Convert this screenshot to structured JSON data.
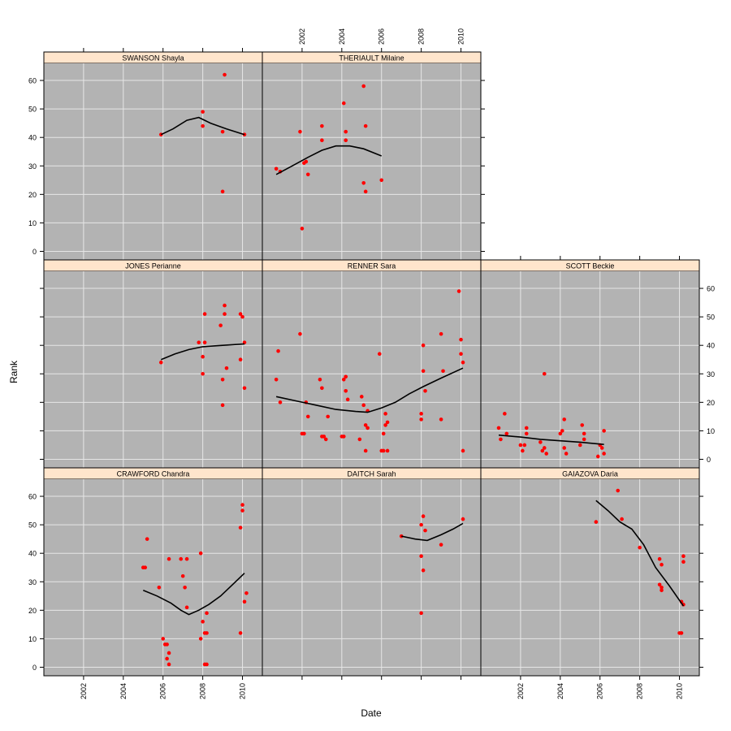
{
  "chart_data": {
    "type": "scatter",
    "xlabel": "Date",
    "ylabel": "Rank",
    "xlim": [
      2000.0,
      2011.0
    ],
    "ylim": [
      -3,
      66
    ],
    "x_ticks": [
      2002,
      2004,
      2006,
      2008,
      2010
    ],
    "y_ticks": [
      0,
      10,
      20,
      30,
      40,
      50,
      60
    ],
    "colors": {
      "panel_bg": "#b3b3b3",
      "grid": "#e6e6e6",
      "strip": "#ffe5cc",
      "points": "#ff0000",
      "smooth_line": "#000000"
    },
    "panels": [
      {
        "name": "SWANSON Shayla",
        "row": 0,
        "col": 0,
        "points": [
          [
            2005.9,
            41
          ],
          [
            2008.0,
            49
          ],
          [
            2008.0,
            44
          ],
          [
            2009.1,
            62
          ],
          [
            2009.0,
            42
          ],
          [
            2009.0,
            21
          ],
          [
            2010.1,
            41
          ]
        ],
        "smooth": [
          [
            2005.9,
            41
          ],
          [
            2006.5,
            43
          ],
          [
            2007.2,
            46
          ],
          [
            2007.8,
            47
          ],
          [
            2008.4,
            45
          ],
          [
            2009.2,
            43
          ],
          [
            2010.1,
            41
          ]
        ]
      },
      {
        "name": "THERIAULT Milaine",
        "row": 0,
        "col": 1,
        "points": [
          [
            2000.7,
            29
          ],
          [
            2000.9,
            28
          ],
          [
            2001.9,
            42
          ],
          [
            2002.0,
            8
          ],
          [
            2002.1,
            31
          ],
          [
            2002.2,
            31.5
          ],
          [
            2002.3,
            27
          ],
          [
            2003.0,
            44
          ],
          [
            2003.0,
            39
          ],
          [
            2004.1,
            52
          ],
          [
            2004.2,
            42
          ],
          [
            2004.2,
            39
          ],
          [
            2005.1,
            58
          ],
          [
            2005.2,
            44
          ],
          [
            2005.1,
            24
          ],
          [
            2005.2,
            21
          ],
          [
            2006.0,
            25
          ]
        ],
        "smooth": [
          [
            2000.7,
            27
          ],
          [
            2001.5,
            30
          ],
          [
            2002.3,
            33
          ],
          [
            2003.0,
            35.5
          ],
          [
            2003.7,
            37
          ],
          [
            2004.4,
            37
          ],
          [
            2005.1,
            36
          ],
          [
            2006.0,
            33.5
          ]
        ]
      },
      {
        "name": "JONES Perianne",
        "row": 1,
        "col": 0,
        "points": [
          [
            2005.9,
            34
          ],
          [
            2007.8,
            41
          ],
          [
            2008.0,
            36
          ],
          [
            2008.0,
            30
          ],
          [
            2008.1,
            41
          ],
          [
            2008.1,
            51
          ],
          [
            2008.9,
            47
          ],
          [
            2009.0,
            28
          ],
          [
            2009.0,
            19
          ],
          [
            2009.1,
            51
          ],
          [
            2009.1,
            54
          ],
          [
            2009.2,
            32
          ],
          [
            2009.9,
            51
          ],
          [
            2009.9,
            35
          ],
          [
            2010.0,
            50
          ],
          [
            2010.1,
            25
          ],
          [
            2010.1,
            41
          ]
        ],
        "smooth": [
          [
            2005.9,
            35
          ],
          [
            2006.6,
            37
          ],
          [
            2007.3,
            38.5
          ],
          [
            2008.0,
            39.5
          ],
          [
            2009.0,
            40
          ],
          [
            2010.1,
            40.5
          ]
        ]
      },
      {
        "name": "RENNER Sara",
        "row": 1,
        "col": 1,
        "points": [
          [
            2000.7,
            28
          ],
          [
            2000.8,
            38
          ],
          [
            2000.9,
            20
          ],
          [
            2001.9,
            44
          ],
          [
            2002.0,
            9
          ],
          [
            2002.1,
            9
          ],
          [
            2002.2,
            20
          ],
          [
            2002.3,
            15
          ],
          [
            2002.9,
            28
          ],
          [
            2003.0,
            25
          ],
          [
            2003.0,
            8
          ],
          [
            2003.1,
            8
          ],
          [
            2003.2,
            7
          ],
          [
            2003.3,
            15
          ],
          [
            2004.0,
            8
          ],
          [
            2004.1,
            8
          ],
          [
            2004.1,
            28
          ],
          [
            2004.2,
            29
          ],
          [
            2004.2,
            24
          ],
          [
            2004.3,
            21
          ],
          [
            2004.9,
            7
          ],
          [
            2005.0,
            22
          ],
          [
            2005.1,
            19
          ],
          [
            2005.2,
            3
          ],
          [
            2005.2,
            12
          ],
          [
            2005.3,
            11
          ],
          [
            2005.3,
            17
          ],
          [
            2005.9,
            37
          ],
          [
            2006.0,
            3
          ],
          [
            2006.1,
            9
          ],
          [
            2006.1,
            3
          ],
          [
            2006.2,
            12
          ],
          [
            2006.2,
            16
          ],
          [
            2006.3,
            13
          ],
          [
            2006.3,
            3
          ],
          [
            2008.0,
            16
          ],
          [
            2008.0,
            14
          ],
          [
            2008.1,
            40
          ],
          [
            2008.1,
            31
          ],
          [
            2008.2,
            24
          ],
          [
            2009.0,
            44
          ],
          [
            2009.0,
            14
          ],
          [
            2009.1,
            31
          ],
          [
            2009.9,
            59
          ],
          [
            2010.0,
            42
          ],
          [
            2010.0,
            37
          ],
          [
            2010.1,
            34
          ],
          [
            2010.1,
            3
          ]
        ],
        "smooth": [
          [
            2000.7,
            22
          ],
          [
            2001.7,
            20.5
          ],
          [
            2002.7,
            19
          ],
          [
            2003.7,
            17.5
          ],
          [
            2004.7,
            16.8
          ],
          [
            2005.3,
            16.5
          ],
          [
            2006.0,
            18
          ],
          [
            2006.7,
            20
          ],
          [
            2007.4,
            23
          ],
          [
            2008.1,
            25.5
          ],
          [
            2009.0,
            28.5
          ],
          [
            2010.1,
            32
          ]
        ]
      },
      {
        "name": "SCOTT Beckie",
        "row": 1,
        "col": 2,
        "points": [
          [
            2000.9,
            11
          ],
          [
            2001.0,
            7
          ],
          [
            2001.2,
            16
          ],
          [
            2001.3,
            9
          ],
          [
            2002.0,
            5
          ],
          [
            2002.1,
            3
          ],
          [
            2002.2,
            5
          ],
          [
            2002.3,
            11
          ],
          [
            2002.3,
            9
          ],
          [
            2003.0,
            6
          ],
          [
            2003.1,
            3
          ],
          [
            2003.2,
            4
          ],
          [
            2003.3,
            2
          ],
          [
            2003.2,
            30
          ],
          [
            2004.0,
            9
          ],
          [
            2004.1,
            10
          ],
          [
            2004.2,
            14
          ],
          [
            2004.2,
            4
          ],
          [
            2004.3,
            2
          ],
          [
            2005.0,
            5
          ],
          [
            2005.1,
            12
          ],
          [
            2005.2,
            9
          ],
          [
            2005.2,
            7
          ],
          [
            2005.9,
            1
          ],
          [
            2006.0,
            5
          ],
          [
            2006.1,
            4
          ],
          [
            2006.2,
            10
          ],
          [
            2006.2,
            2
          ]
        ],
        "smooth": [
          [
            2000.9,
            8.5
          ],
          [
            2002.0,
            7.8
          ],
          [
            2003.0,
            7
          ],
          [
            2004.0,
            6.5
          ],
          [
            2005.0,
            6
          ],
          [
            2006.2,
            5.2
          ]
        ]
      },
      {
        "name": "CRAWFORD Chandra",
        "row": 2,
        "col": 0,
        "points": [
          [
            2005.0,
            35
          ],
          [
            2005.1,
            35
          ],
          [
            2005.2,
            45
          ],
          [
            2005.8,
            28
          ],
          [
            2006.0,
            10
          ],
          [
            2006.1,
            8
          ],
          [
            2006.2,
            8
          ],
          [
            2006.2,
            3
          ],
          [
            2006.3,
            1
          ],
          [
            2006.3,
            5
          ],
          [
            2006.3,
            38
          ],
          [
            2006.9,
            38
          ],
          [
            2007.0,
            32
          ],
          [
            2007.1,
            28
          ],
          [
            2007.2,
            21
          ],
          [
            2007.2,
            38
          ],
          [
            2007.9,
            10
          ],
          [
            2007.9,
            40
          ],
          [
            2008.0,
            16
          ],
          [
            2008.1,
            12
          ],
          [
            2008.1,
            1
          ],
          [
            2008.2,
            1
          ],
          [
            2008.2,
            12
          ],
          [
            2008.2,
            19
          ],
          [
            2009.9,
            49
          ],
          [
            2009.9,
            12
          ],
          [
            2010.0,
            57
          ],
          [
            2010.0,
            55
          ],
          [
            2010.1,
            23
          ],
          [
            2010.2,
            26
          ]
        ],
        "smooth": [
          [
            2005.0,
            27
          ],
          [
            2005.7,
            25
          ],
          [
            2006.4,
            22.5
          ],
          [
            2006.9,
            20
          ],
          [
            2007.3,
            18.5
          ],
          [
            2007.8,
            20
          ],
          [
            2008.3,
            22
          ],
          [
            2008.9,
            25
          ],
          [
            2009.5,
            29
          ],
          [
            2010.1,
            33
          ]
        ]
      },
      {
        "name": "DAITCH Sarah",
        "row": 2,
        "col": 1,
        "points": [
          [
            2007.0,
            46
          ],
          [
            2008.0,
            50
          ],
          [
            2008.0,
            39
          ],
          [
            2008.0,
            19
          ],
          [
            2008.1,
            34
          ],
          [
            2008.1,
            53
          ],
          [
            2008.2,
            48
          ],
          [
            2009.0,
            43
          ],
          [
            2010.1,
            52
          ]
        ],
        "smooth": [
          [
            2007.0,
            46
          ],
          [
            2007.7,
            45
          ],
          [
            2008.3,
            44.5
          ],
          [
            2009.0,
            46.5
          ],
          [
            2009.6,
            48.5
          ],
          [
            2010.1,
            50.5
          ]
        ]
      },
      {
        "name": "GAIAZOVA Daria",
        "row": 2,
        "col": 2,
        "points": [
          [
            2005.8,
            51
          ],
          [
            2006.9,
            62
          ],
          [
            2007.1,
            52
          ],
          [
            2008.0,
            42
          ],
          [
            2009.0,
            29
          ],
          [
            2009.0,
            38
          ],
          [
            2009.1,
            28
          ],
          [
            2009.1,
            27
          ],
          [
            2009.1,
            36
          ],
          [
            2010.0,
            12
          ],
          [
            2010.1,
            12
          ],
          [
            2010.1,
            23
          ],
          [
            2010.2,
            39
          ],
          [
            2010.2,
            37
          ],
          [
            2010.2,
            22
          ]
        ],
        "smooth": [
          [
            2005.8,
            58.5
          ],
          [
            2006.4,
            55
          ],
          [
            2007.0,
            51
          ],
          [
            2007.6,
            48.5
          ],
          [
            2008.2,
            43
          ],
          [
            2008.8,
            35
          ],
          [
            2009.5,
            28.5
          ],
          [
            2010.2,
            21.5
          ]
        ]
      }
    ]
  }
}
